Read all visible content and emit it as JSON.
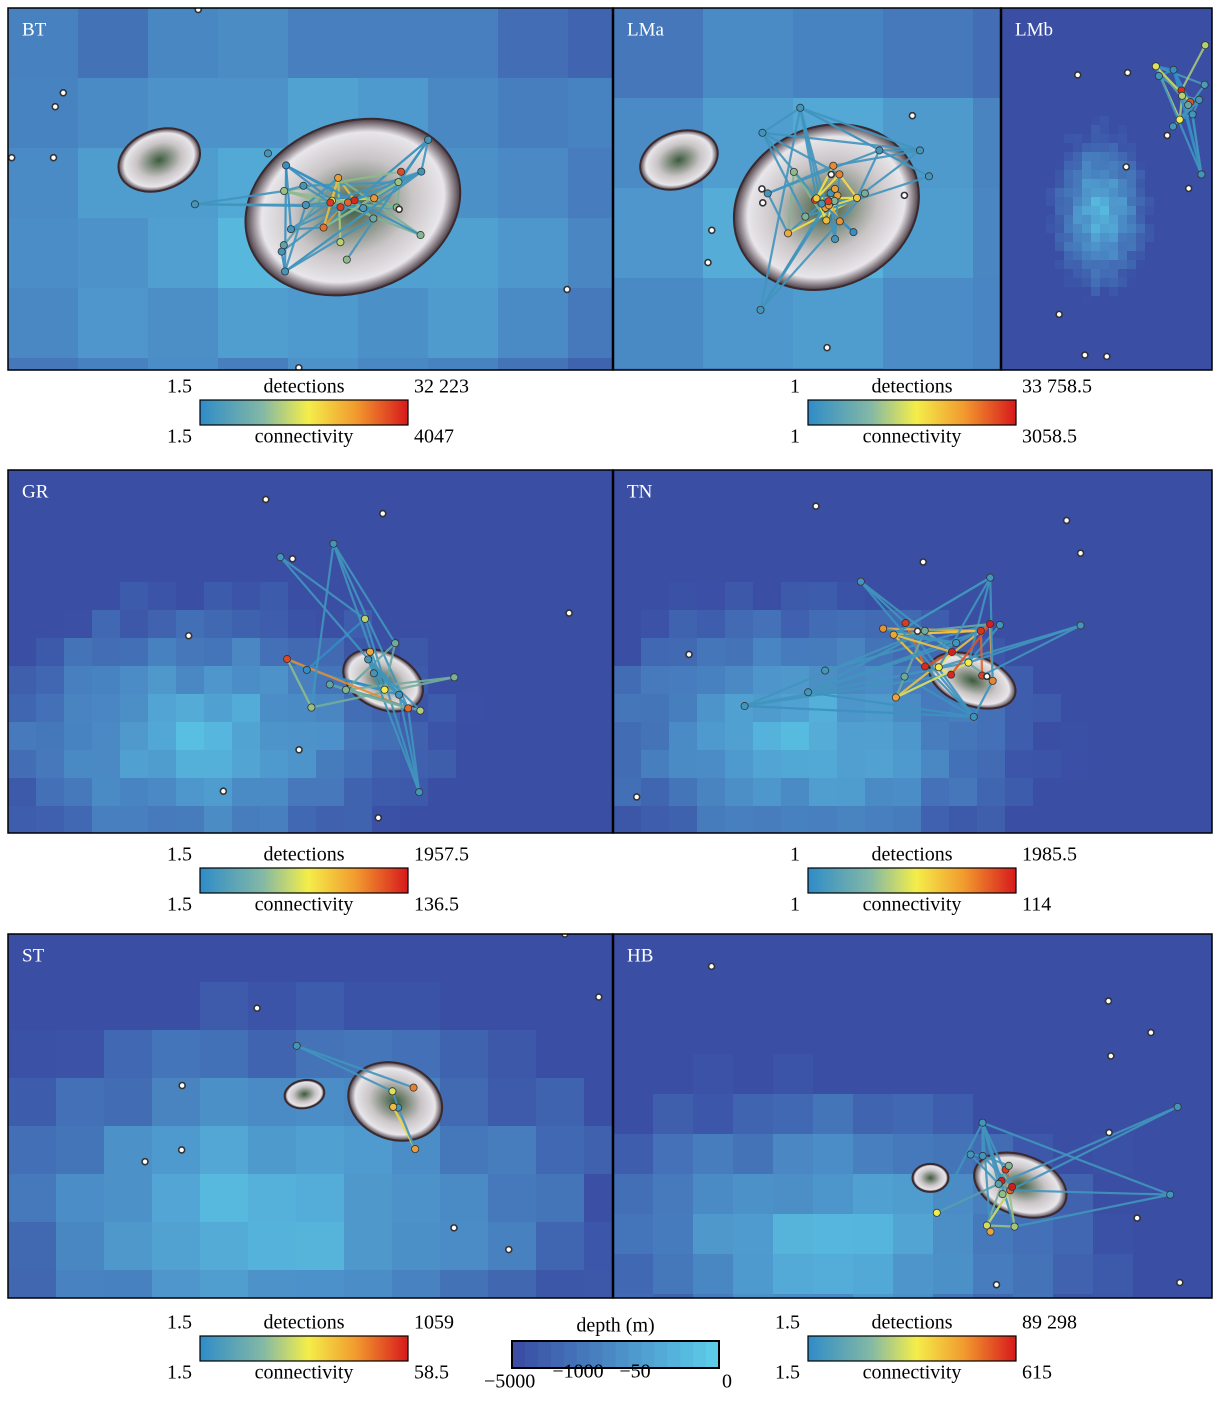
{
  "panels": [
    {
      "label": "BT"
    },
    {
      "label": "LMa"
    },
    {
      "label": "LMb"
    },
    {
      "label": "GR"
    },
    {
      "label": "TN"
    },
    {
      "label": "ST"
    },
    {
      "label": "HB"
    }
  ],
  "colorbars": [
    {
      "detections_min": "1.5",
      "detections_label": "detections",
      "detections_max": "32 223",
      "connectivity_min": "1.5",
      "connectivity_label": "connectivity",
      "connectivity_max": "4047"
    },
    {
      "detections_min": "1",
      "detections_label": "detections",
      "detections_max": "33 758.5",
      "connectivity_min": "1",
      "connectivity_label": "connectivity",
      "connectivity_max": "3058.5"
    },
    {
      "detections_min": "1.5",
      "detections_label": "detections",
      "detections_max": "1957.5",
      "connectivity_min": "1.5",
      "connectivity_label": "connectivity",
      "connectivity_max": "136.5"
    },
    {
      "detections_min": "1",
      "detections_label": "detections",
      "detections_max": "1985.5",
      "connectivity_min": "1",
      "connectivity_label": "connectivity",
      "connectivity_max": "114"
    },
    {
      "detections_min": "1.5",
      "detections_label": "detections",
      "detections_max": "1059",
      "connectivity_min": "1.5",
      "connectivity_label": "connectivity",
      "connectivity_max": "58.5"
    },
    {
      "detections_min": "1.5",
      "detections_label": "detections",
      "detections_max": "89 298",
      "connectivity_min": "1.5",
      "connectivity_label": "connectivity",
      "connectivity_max": "615"
    }
  ],
  "depth_bar": {
    "label": "depth (m)",
    "ticks": [
      "−5000",
      "−1000",
      "−50",
      "0"
    ]
  }
}
